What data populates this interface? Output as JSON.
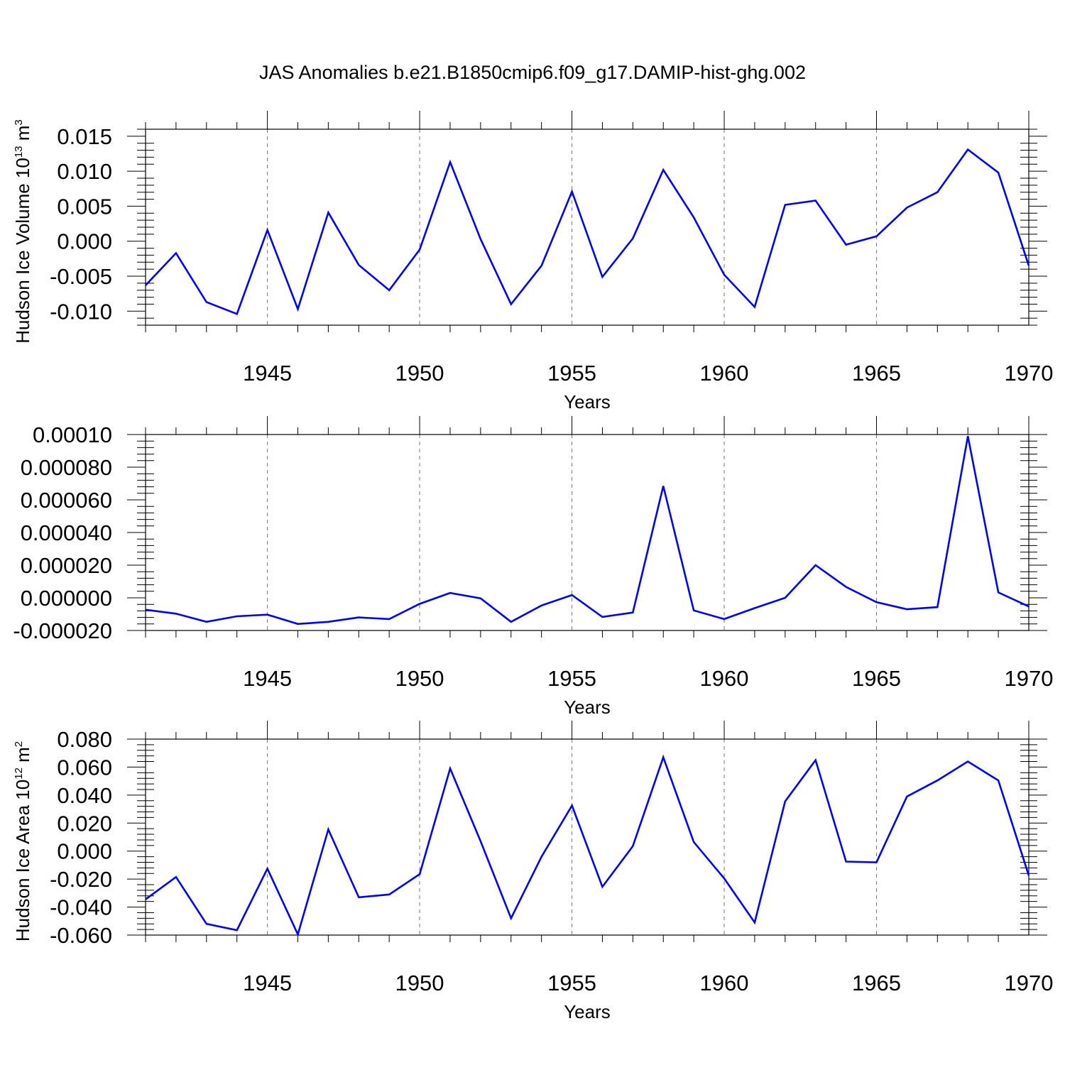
{
  "title": "JAS Anomalies b.e21.B1850cmip6.f09_g17.DAMIP-hist-ghg.002",
  "chart_data": [
    {
      "type": "line",
      "title": "",
      "xlabel": "Years",
      "ylabel": {
        "pre": "Hudson Ice Volume 10",
        "sup1": "13",
        "mid": " m",
        "sup2": "3"
      },
      "xlim": [
        1941,
        1970
      ],
      "ylim": [
        -0.012,
        0.016
      ],
      "xticks": [
        1945,
        1950,
        1955,
        1960,
        1965,
        1970
      ],
      "xtick_labels": [
        "1945",
        "1950",
        "1955",
        "1960",
        "1965",
        "1970"
      ],
      "yticks": [
        0.015,
        0.01,
        0.005,
        0.0,
        -0.005,
        -0.01
      ],
      "ytick_labels": [
        "0.015",
        "0.010",
        "0.005",
        "0.000",
        "-0.005",
        "-0.010"
      ],
      "grid_x": "dashed vertical at major ticks",
      "color": "#0000ff",
      "x": [
        1941,
        1942,
        1943,
        1944,
        1945,
        1946,
        1947,
        1948,
        1949,
        1950,
        1951,
        1952,
        1953,
        1954,
        1955,
        1956,
        1957,
        1958,
        1959,
        1960,
        1961,
        1962,
        1963,
        1964,
        1965,
        1966,
        1967,
        1968,
        1969,
        1970
      ],
      "y": [
        -0.0063,
        -0.0017,
        -0.0087,
        -0.0104,
        0.0016,
        -0.0097,
        0.0041,
        -0.0034,
        -0.007,
        -0.0012,
        0.0113,
        0.0003,
        -0.009,
        -0.0035,
        0.0071,
        -0.0051,
        0.0004,
        0.0102,
        0.0034,
        -0.0048,
        -0.0094,
        0.0052,
        0.0058,
        -0.0005,
        0.0007,
        0.0048,
        0.007,
        0.0131,
        0.0098,
        -0.0035
      ]
    },
    {
      "type": "line",
      "title": "",
      "xlabel": "Years",
      "ylabel": null,
      "xlim": [
        1941,
        1970
      ],
      "ylim": [
        -2e-05,
        0.0001
      ],
      "xticks": [
        1945,
        1950,
        1955,
        1960,
        1965,
        1970
      ],
      "xtick_labels": [
        "1945",
        "1950",
        "1955",
        "1960",
        "1965",
        "1970"
      ],
      "yticks": [
        0.0001,
        8e-05,
        6e-05,
        4e-05,
        2e-05,
        0.0,
        -2e-05
      ],
      "ytick_labels": [
        "0.00010",
        "0.000080",
        "0.000060",
        "0.000040",
        "0.000020",
        "0.000000",
        "-0.000020"
      ],
      "grid_x": "dashed vertical at major ticks",
      "color": "#0000ff",
      "x": [
        1941,
        1942,
        1943,
        1944,
        1945,
        1946,
        1947,
        1948,
        1949,
        1950,
        1951,
        1952,
        1953,
        1954,
        1955,
        1956,
        1957,
        1958,
        1959,
        1960,
        1961,
        1962,
        1963,
        1964,
        1965,
        1966,
        1967,
        1968,
        1969,
        1970
      ],
      "y": [
        -7.3e-06,
        -9.7e-06,
        -1.47e-05,
        -1.13e-05,
        -1.03e-05,
        -1.6e-05,
        -1.47e-05,
        -1.2e-05,
        -1.3e-05,
        -3.7e-06,
        3e-06,
        -3e-07,
        -1.47e-05,
        -4.7e-06,
        1.7e-06,
        -1.17e-05,
        -9e-06,
        6.85e-05,
        -7.7e-06,
        -1.3e-05,
        -6.3e-06,
        0.0,
        2e-05,
        6.7e-06,
        -2.7e-06,
        -7e-06,
        -5.7e-06,
        9.9e-05,
        3.3e-06,
        -5.3e-06
      ]
    },
    {
      "type": "line",
      "title": "",
      "xlabel": "Years",
      "ylabel": {
        "pre": "Hudson Ice Area 10",
        "sup1": "12",
        "mid": " m",
        "sup2": "2"
      },
      "xlim": [
        1941,
        1970
      ],
      "ylim": [
        -0.06,
        0.08
      ],
      "xticks": [
        1945,
        1950,
        1955,
        1960,
        1965,
        1970
      ],
      "xtick_labels": [
        "1945",
        "1950",
        "1955",
        "1960",
        "1965",
        "1970"
      ],
      "yticks": [
        0.08,
        0.06,
        0.04,
        0.02,
        0.0,
        -0.02,
        -0.04,
        -0.06
      ],
      "ytick_labels": [
        "0.080",
        "0.060",
        "0.040",
        "0.020",
        "0.000",
        "-0.020",
        "-0.040",
        "-0.060"
      ],
      "grid_x": "dashed vertical at major ticks",
      "color": "#0000ff",
      "x": [
        1941,
        1942,
        1943,
        1944,
        1945,
        1946,
        1947,
        1948,
        1949,
        1950,
        1951,
        1952,
        1953,
        1954,
        1955,
        1956,
        1957,
        1958,
        1959,
        1960,
        1961,
        1962,
        1963,
        1964,
        1965,
        1966,
        1967,
        1968,
        1969,
        1970
      ],
      "y": [
        -0.0345,
        -0.0185,
        -0.052,
        -0.0565,
        -0.0125,
        -0.0595,
        0.0155,
        -0.033,
        -0.031,
        -0.0165,
        0.059,
        0.007,
        -0.048,
        -0.004,
        0.0325,
        -0.0255,
        0.0035,
        0.067,
        0.0065,
        -0.0195,
        -0.051,
        0.0355,
        0.065,
        -0.0075,
        -0.008,
        0.039,
        0.0505,
        0.064,
        0.0505,
        -0.0175
      ]
    }
  ]
}
